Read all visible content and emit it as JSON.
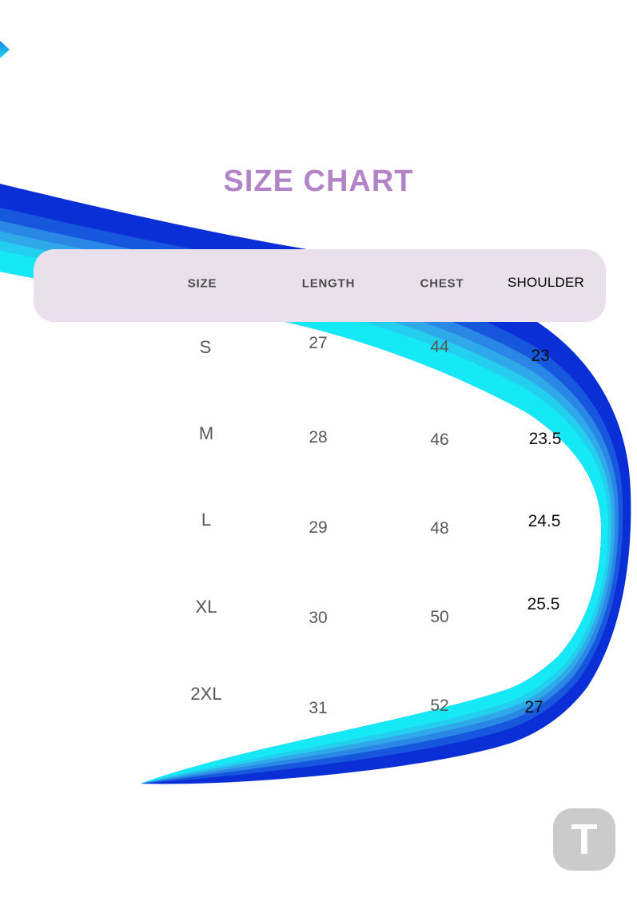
{
  "page": {
    "title": "SIZE CHART",
    "title_color": "#b383c8",
    "background_color": "#ffffff"
  },
  "table": {
    "columns": [
      "SIZE",
      "LENGTH",
      "CHEST",
      "SHOULDER"
    ],
    "rows": [
      {
        "size": "S",
        "length": "27",
        "chest": "44",
        "shoulder": "23"
      },
      {
        "size": "M",
        "length": "28",
        "chest": "46",
        "shoulder": "23.5"
      },
      {
        "size": "L",
        "length": "29",
        "chest": "48",
        "shoulder": "24.5"
      },
      {
        "size": "XL",
        "length": "30",
        "chest": "50",
        "shoulder": "25.5"
      },
      {
        "size": "2XL",
        "length": "31",
        "chest": "52",
        "shoulder": "27"
      }
    ],
    "colors": {
      "header_bg": "#e9e0ec",
      "header_text": "#4a4a4c",
      "shoulder_header_text": "#000000",
      "cell_text": "#57585a",
      "shoulder_cell_text": "#0d0d0d"
    }
  },
  "decor": {
    "swoosh_band_colors_outer_to_inner": [
      "#0b2fd6",
      "#1657de",
      "#2b87e6",
      "#2fa9e9",
      "#24ceef",
      "#16e9f6"
    ],
    "edge_arrow_colors": [
      "#1c7fe5",
      "#17daf0"
    ]
  },
  "logo": {
    "letter": "T",
    "bg_color": "#cbcbcb",
    "letter_color": "#ffffff"
  }
}
